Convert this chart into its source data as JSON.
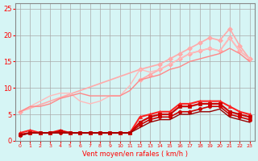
{
  "xlabel": "Vent moyen/en rafales ( km/h )",
  "bg_color": "#d6f5f5",
  "grid_color": "#aaaaaa",
  "x_values": [
    0,
    1,
    2,
    3,
    4,
    5,
    6,
    7,
    8,
    9,
    10,
    11,
    12,
    13,
    14,
    15,
    16,
    17,
    18,
    19,
    20,
    21,
    22,
    23
  ],
  "series": [
    {
      "color": "#ffaaaa",
      "lw": 1.2,
      "marker": "D",
      "ms": 3,
      "data": [
        5.5,
        null,
        null,
        null,
        null,
        null,
        null,
        null,
        null,
        null,
        null,
        null,
        13.5,
        null,
        14.5,
        15.5,
        16.5,
        17.5,
        18.5,
        19.5,
        19.0,
        21.2,
        18.0,
        15.5
      ]
    },
    {
      "color": "#ffaaaa",
      "lw": 1.2,
      "marker": "D",
      "ms": 3,
      "data": [
        null,
        null,
        null,
        null,
        null,
        null,
        null,
        null,
        null,
        null,
        null,
        null,
        11.5,
        12.5,
        13.5,
        14.5,
        15.5,
        16.5,
        17.0,
        17.5,
        17.0,
        19.5,
        17.0,
        15.5
      ]
    },
    {
      "color": "#ffbbbb",
      "lw": 1.0,
      "marker": null,
      "ms": 0,
      "data": [
        5.5,
        6.5,
        7.5,
        8.5,
        9.0,
        9.0,
        7.5,
        7.0,
        7.5,
        8.5,
        8.5,
        10.5,
        13.5,
        13.0,
        13.5,
        14.5,
        15.5,
        16.5,
        17.0,
        17.5,
        17.0,
        19.5,
        17.0,
        15.5
      ]
    },
    {
      "color": "#ff8888",
      "lw": 1.0,
      "marker": null,
      "ms": 0,
      "data": [
        5.5,
        6.5,
        6.5,
        7.0,
        8.0,
        8.5,
        9.0,
        8.5,
        8.5,
        8.5,
        8.5,
        9.5,
        11.5,
        12.0,
        12.5,
        13.5,
        14.0,
        15.0,
        15.5,
        16.0,
        16.5,
        17.5,
        16.5,
        15.0
      ]
    },
    {
      "color": "#ff2222",
      "lw": 1.5,
      "marker": "^",
      "ms": 3,
      "data": [
        1.5,
        2.0,
        1.5,
        1.5,
        2.0,
        1.5,
        1.5,
        1.5,
        1.5,
        1.5,
        1.5,
        1.5,
        4.5,
        5.0,
        5.5,
        5.5,
        7.0,
        7.0,
        7.5,
        7.5,
        7.5,
        6.5,
        5.5,
        5.0
      ]
    },
    {
      "color": "#cc0000",
      "lw": 1.5,
      "marker": "s",
      "ms": 3,
      "data": [
        1.2,
        1.5,
        1.5,
        1.5,
        1.8,
        1.5,
        1.5,
        1.5,
        1.5,
        1.5,
        1.5,
        1.5,
        3.5,
        4.5,
        5.0,
        5.0,
        6.5,
        6.5,
        7.0,
        7.0,
        7.0,
        5.5,
        5.0,
        4.5
      ]
    },
    {
      "color": "#cc0000",
      "lw": 1.2,
      "marker": "o",
      "ms": 3,
      "data": [
        1.0,
        1.5,
        1.5,
        1.5,
        1.5,
        1.5,
        1.5,
        1.5,
        1.5,
        1.5,
        1.5,
        1.5,
        3.0,
        4.0,
        4.5,
        4.5,
        5.5,
        5.5,
        6.0,
        6.5,
        6.5,
        5.0,
        4.5,
        4.0
      ]
    },
    {
      "color": "#990000",
      "lw": 1.0,
      "marker": null,
      "ms": 0,
      "data": [
        1.0,
        1.5,
        1.5,
        1.5,
        1.5,
        1.5,
        1.5,
        1.5,
        1.5,
        1.5,
        1.5,
        1.5,
        2.5,
        3.5,
        4.0,
        4.0,
        5.0,
        5.0,
        5.5,
        5.5,
        6.0,
        4.5,
        4.0,
        3.5
      ]
    }
  ]
}
